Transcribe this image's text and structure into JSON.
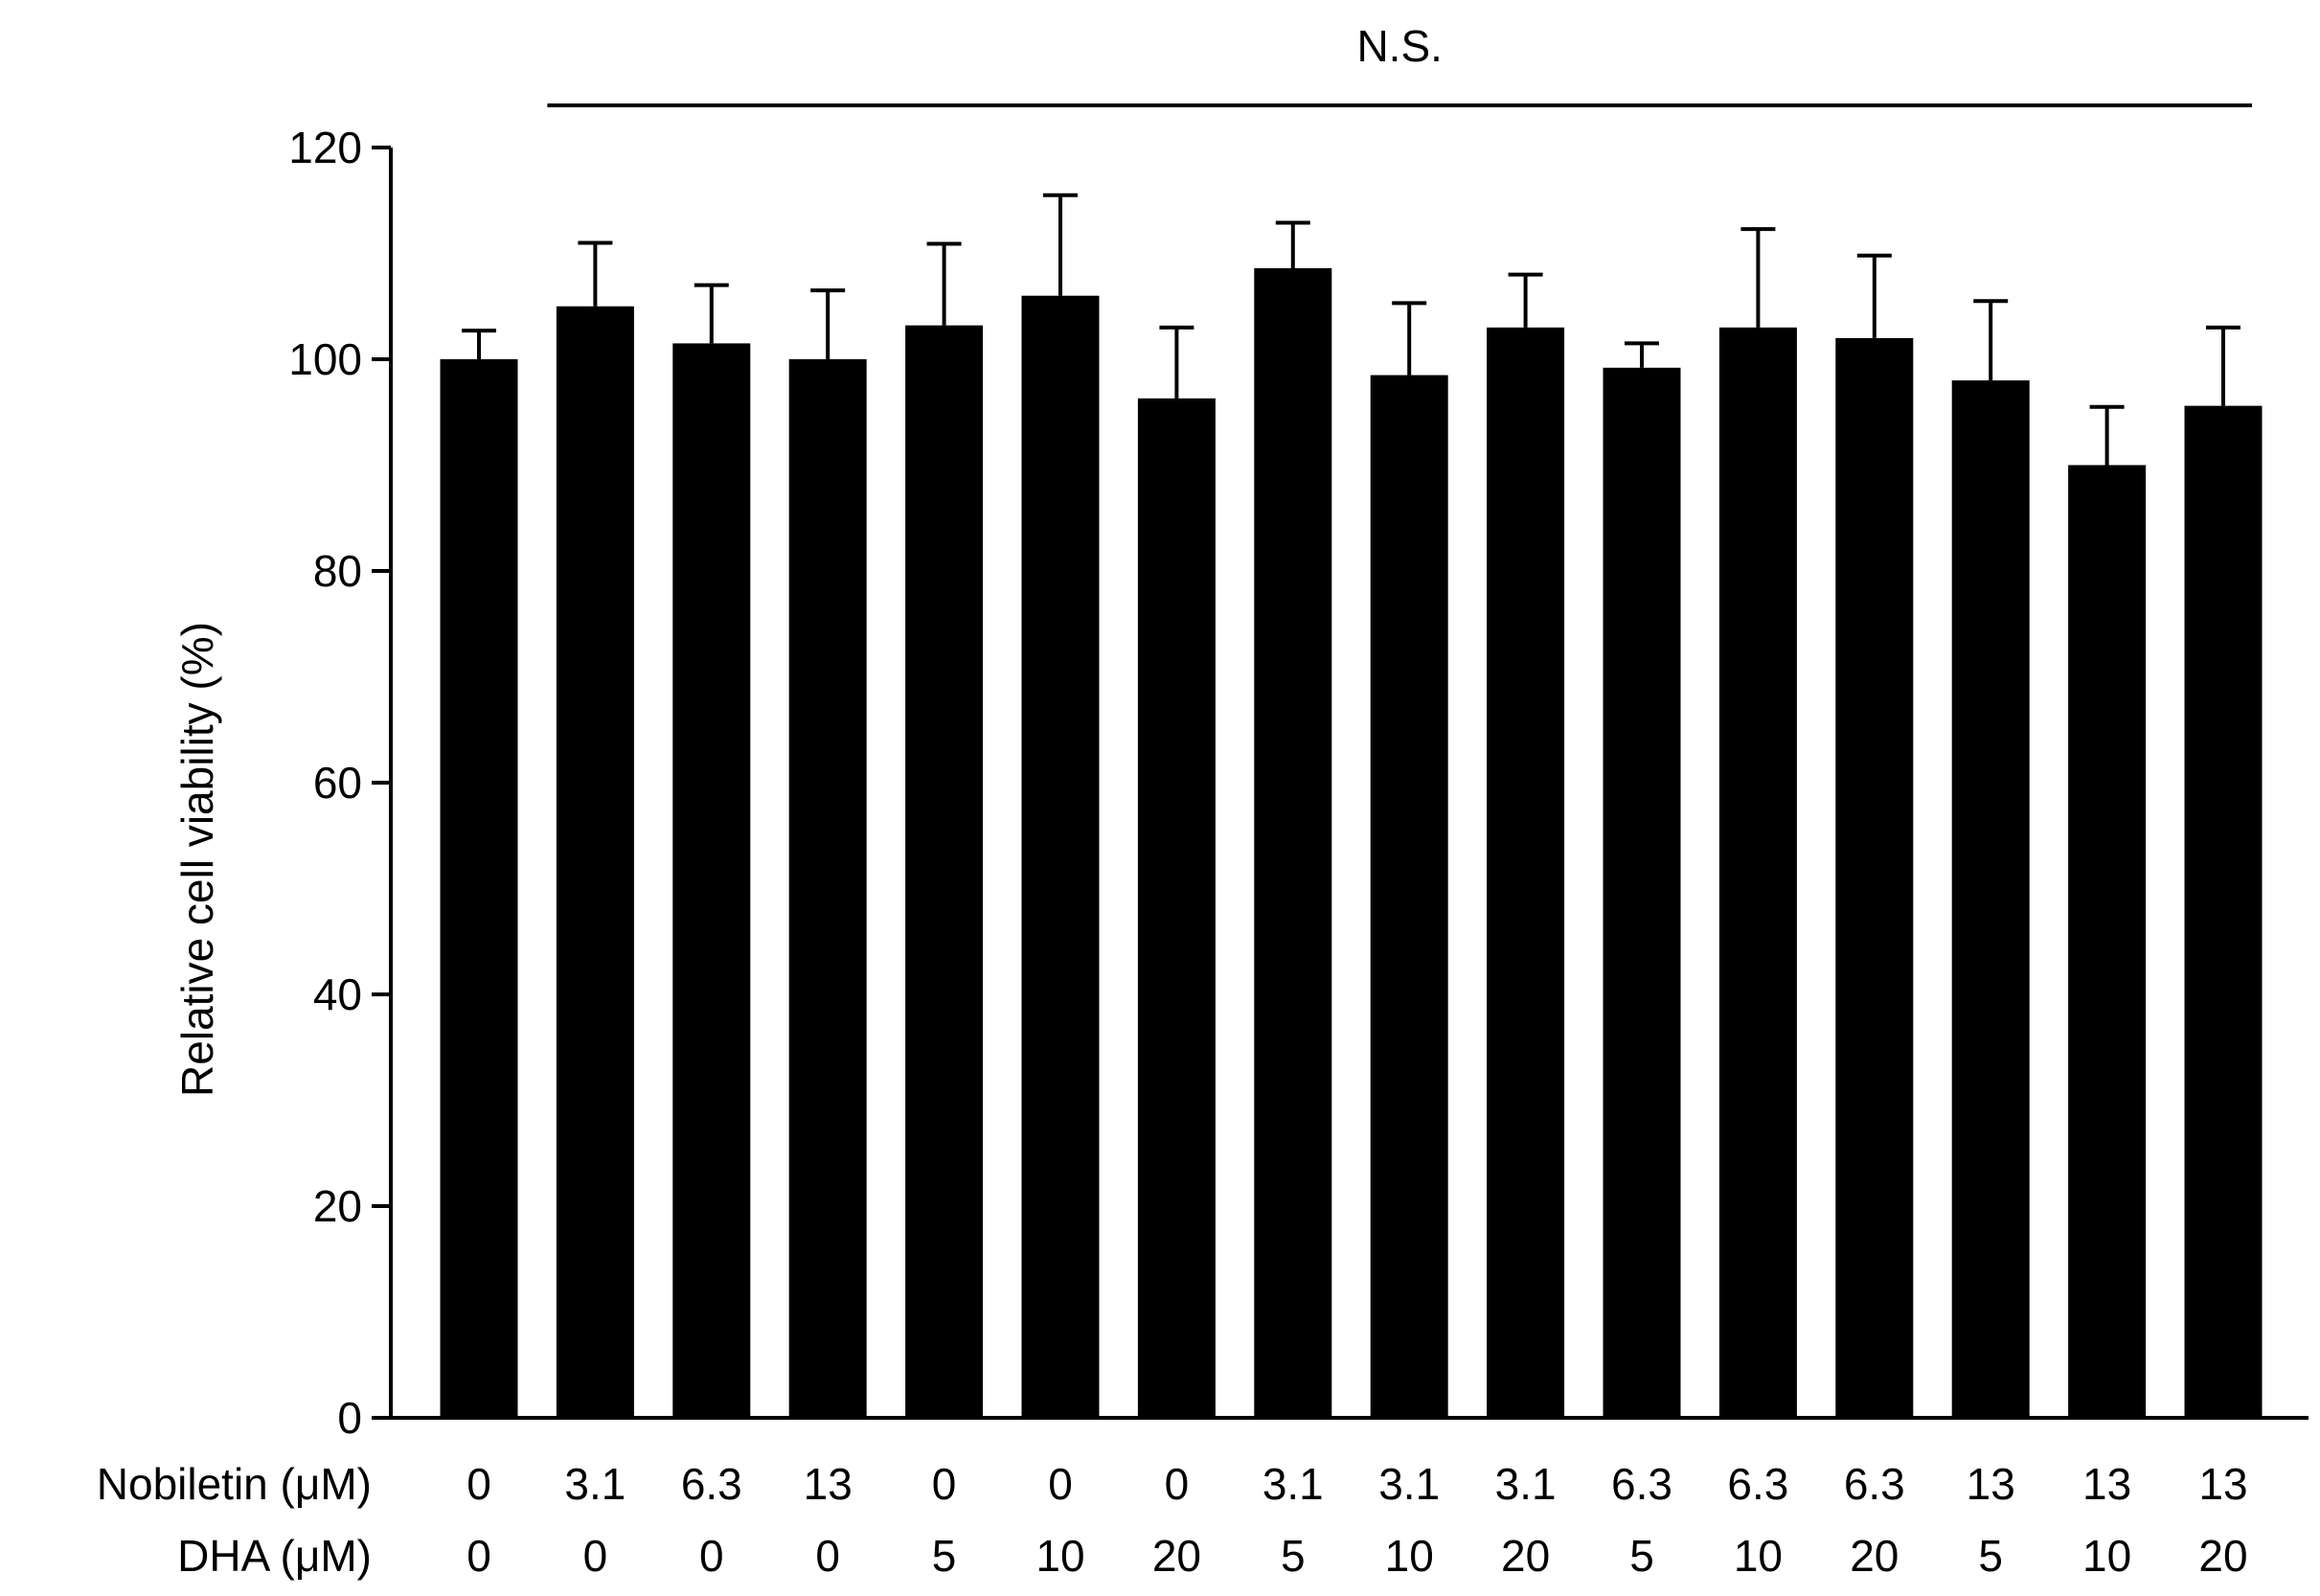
{
  "chart_data": {
    "type": "bar",
    "ylabel": "Relative cell viability (%)",
    "ylim": [
      0,
      120
    ],
    "yticks": [
      0,
      20,
      40,
      60,
      80,
      100,
      120
    ],
    "grid": false,
    "bar_color": "#000000",
    "row_labels": [
      "Nobiletin (μM)",
      "DHA (μM)"
    ],
    "nobiletin": [
      "0",
      "3.1",
      "6.3",
      "13",
      "0",
      "0",
      "0",
      "3.1",
      "3.1",
      "3.1",
      "6.3",
      "6.3",
      "6.3",
      "13",
      "13",
      "13"
    ],
    "dha": [
      "0",
      "0",
      "0",
      "0",
      "5",
      "10",
      "20",
      "5",
      "10",
      "20",
      "5",
      "10",
      "20",
      "5",
      "10",
      "20"
    ],
    "values": [
      100,
      105,
      101.5,
      100,
      103.2,
      106,
      96.3,
      108.6,
      98.5,
      103,
      99.2,
      103,
      102,
      98,
      90,
      95.6
    ],
    "errors": [
      2.7,
      6,
      5.5,
      6.5,
      7.7,
      9.5,
      6.7,
      4.3,
      6.8,
      5,
      2.3,
      9.3,
      7.8,
      7.5,
      5.5,
      7.4
    ],
    "annotation": {
      "text": "N.S.",
      "from_index": 1,
      "to_index": 15
    }
  }
}
